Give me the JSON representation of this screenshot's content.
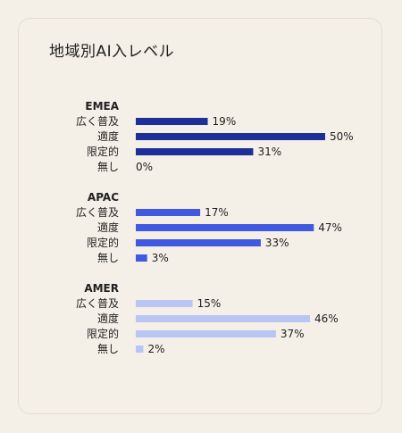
{
  "title": "地域別AI入レベル",
  "chart_data": {
    "type": "bar",
    "orientation": "horizontal",
    "title": "地域別AI入レベル",
    "categories": [
      "広く普及",
      "適度",
      "限定的",
      "無し"
    ],
    "value_suffix": "%",
    "groups": [
      {
        "name": "EMEA",
        "color": "#1f2f9a",
        "values": [
          19,
          50,
          31,
          0
        ]
      },
      {
        "name": "APAC",
        "color": "#4159e0",
        "values": [
          17,
          47,
          33,
          3
        ]
      },
      {
        "name": "AMER",
        "color": "#b9c6f4",
        "values": [
          15,
          46,
          37,
          2
        ]
      }
    ],
    "xlim": [
      0,
      50
    ]
  }
}
